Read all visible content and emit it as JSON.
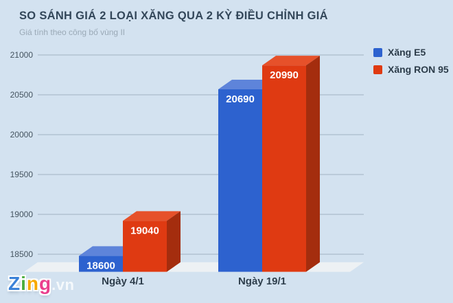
{
  "chart_data": {
    "type": "bar",
    "variant": "3d-grouped-column",
    "title": "SO SÁNH GIÁ 2 LOẠI XĂNG QUA 2 KỲ ĐIỀU CHỈNH GIÁ",
    "subtitle": "Giá tính theo công bố vùng II",
    "categories": [
      "Ngày 4/1",
      "Ngày 19/1"
    ],
    "series": [
      {
        "name": "Xăng E5",
        "values": [
          18600,
          20690
        ],
        "color": "#2d62cf",
        "color_top": "#5e84da",
        "color_side": "#2451ab"
      },
      {
        "name": "Xăng RON 95",
        "values": [
          19040,
          20990
        ],
        "color": "#df3a12",
        "color_top": "#e6512a",
        "color_side": "#a42d0e"
      }
    ],
    "ylim": [
      18400,
      21000
    ],
    "yticks": [
      18500,
      19000,
      19500,
      20000,
      20500,
      21000
    ],
    "grid": true,
    "legend_position": "top-right",
    "value_labels_shown": true,
    "value_labels": [
      "18600",
      "19040",
      "20690",
      "20990"
    ]
  },
  "watermark": {
    "brand_letters": [
      {
        "char": "Z",
        "color": "#3b82d8"
      },
      {
        "char": "i",
        "color": "#4aad3d"
      },
      {
        "char": "n",
        "color": "#f7a800"
      },
      {
        "char": "g",
        "color": "#ea3f8d"
      }
    ],
    "suffix": ".vn"
  },
  "colors": {
    "background": "#d3e2f0",
    "grid": "#a0b3c2",
    "floor": "#edf1f4",
    "title_text": "#33475a",
    "subtitle_text": "#9aa9b6",
    "axis_text": "#44535f",
    "category_text": "#2e3e4c",
    "value_label_text": "#ffffff"
  }
}
